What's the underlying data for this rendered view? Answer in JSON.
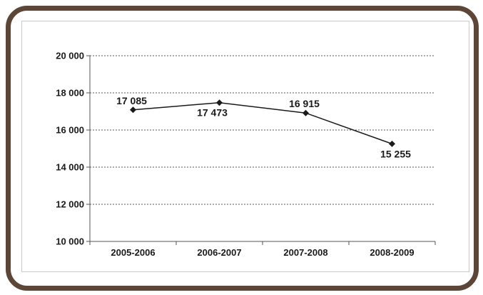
{
  "colors": {
    "frame_border": "#5b4637",
    "line": "#1a1a1a",
    "gridline": "#555555"
  },
  "chart_data": {
    "type": "line",
    "categories": [
      "2005-2006",
      "2006-2007",
      "2007-2008",
      "2008-2009"
    ],
    "values": [
      17085,
      17473,
      16915,
      15255
    ],
    "data_labels": [
      "17 085",
      "17 473",
      "16 915",
      "15 255"
    ],
    "y_tick_labels": [
      "10 000",
      "12 000",
      "14 000",
      "16 000",
      "18 000",
      "20 000"
    ],
    "y_ticks": [
      10000,
      12000,
      14000,
      16000,
      18000,
      20000
    ],
    "ylim": [
      10000,
      20000
    ],
    "grid": "dotted horizontal",
    "legend": "none",
    "marker": "diamond"
  }
}
